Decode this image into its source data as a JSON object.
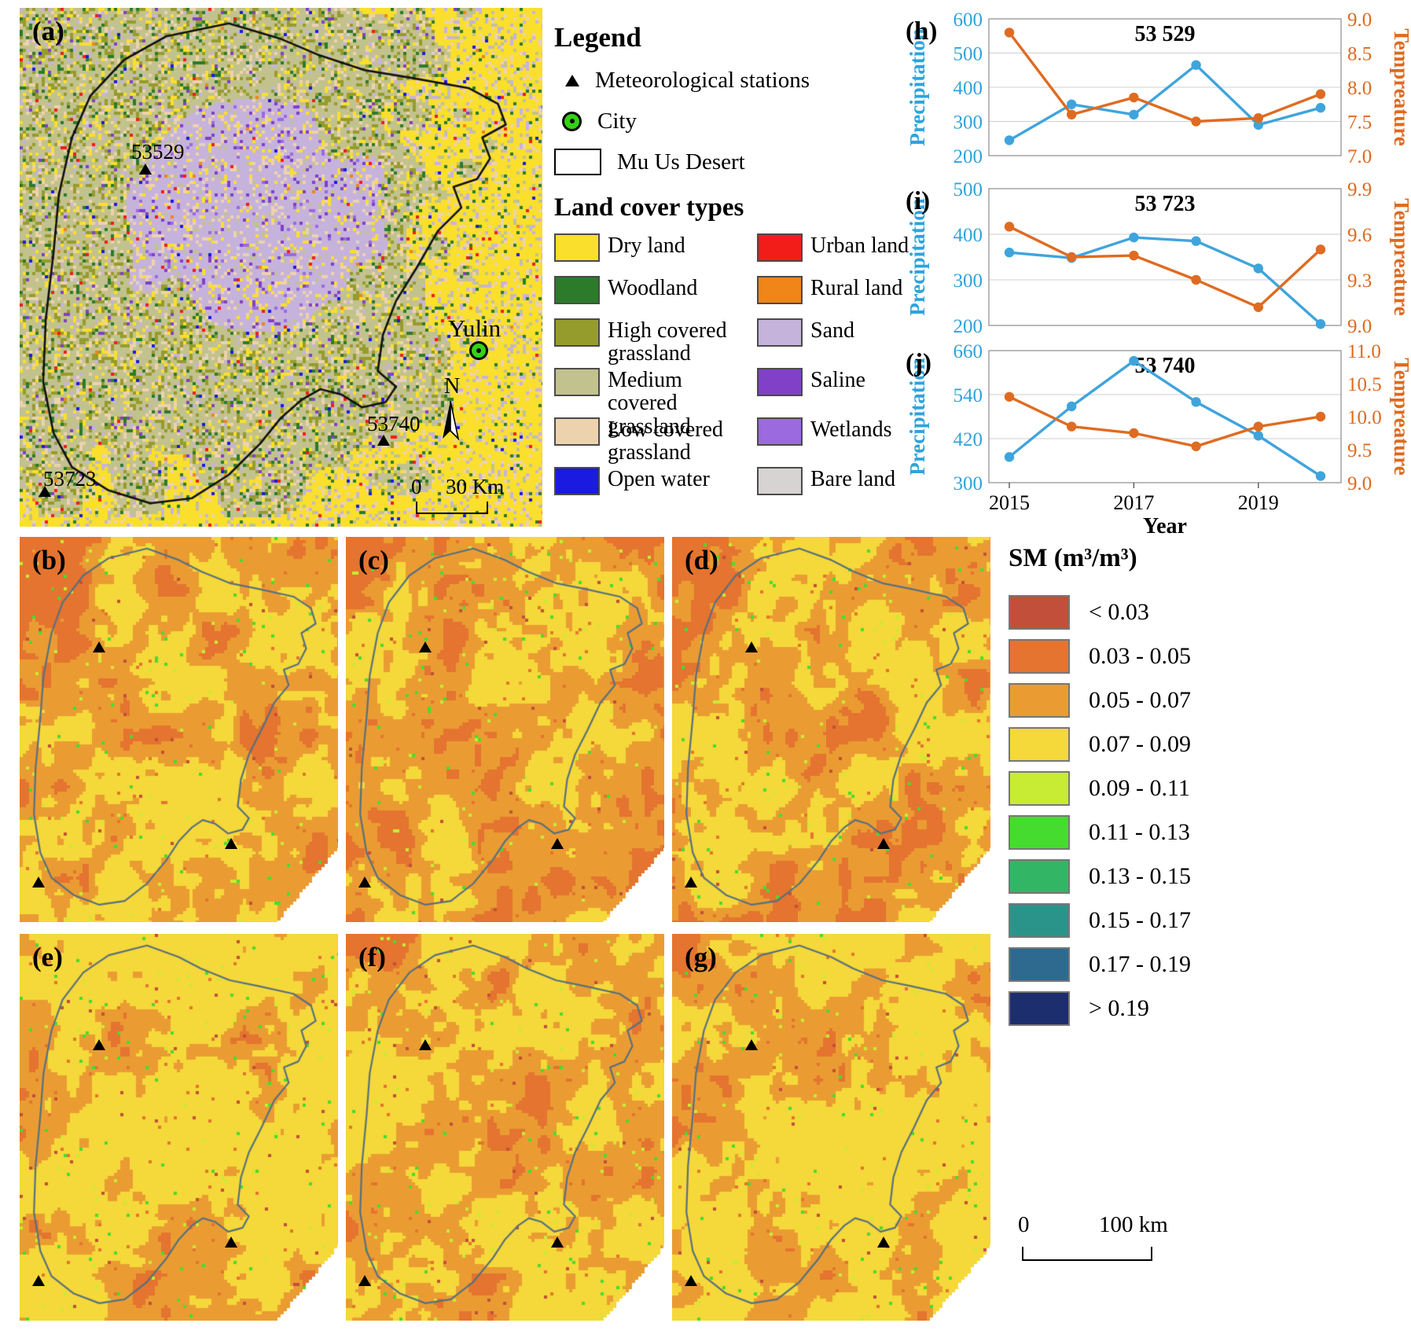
{
  "panel_a": {
    "label": "(a)",
    "stations": [
      {
        "id": "53529"
      },
      {
        "id": "53723"
      },
      {
        "id": "53740"
      }
    ],
    "city_label": "Yulin",
    "north_label": "N",
    "scalebar": {
      "start": "0",
      "end": "30 Km"
    }
  },
  "legend": {
    "title": "Legend",
    "items": [
      {
        "label": "Meteorological stations",
        "icon": "triangle-icon"
      },
      {
        "label": "City",
        "icon": "city-dot-icon"
      },
      {
        "label": "Mu Us Desert",
        "icon": "outline-box-icon"
      }
    ],
    "landcover_title": "Land cover types",
    "landcover": [
      {
        "label": "Dry land",
        "color": "#FADF2D"
      },
      {
        "label": "Woodland",
        "color": "#2B7B2B"
      },
      {
        "label": "High covered grassland",
        "color": "#969C2C"
      },
      {
        "label": "Medium covered grassland",
        "color": "#C2C28E"
      },
      {
        "label": "Low covered grassland",
        "color": "#EDD2AE"
      },
      {
        "label": "Open water",
        "color": "#1A1AE0"
      },
      {
        "label": "Urban land",
        "color": "#F21C19"
      },
      {
        "label": "Rural land",
        "color": "#F08519"
      },
      {
        "label": "Sand",
        "color": "#C6B3DC"
      },
      {
        "label": "Saline",
        "color": "#8040C8"
      },
      {
        "label": "Wetlands",
        "color": "#9A6ADE"
      },
      {
        "label": "Bare land",
        "color": "#D8D3D3"
      }
    ]
  },
  "chart_data": [
    {
      "type": "line",
      "panel_label": "(h)",
      "title": "53 529",
      "x": [
        2015,
        2016,
        2017,
        2018,
        2019,
        2020
      ],
      "x_ticks": [
        2015,
        2017,
        2019
      ],
      "xlabel": "Year",
      "left_axis": {
        "label": "Precipitation",
        "min": 200,
        "max": 600,
        "ticks": [
          200,
          300,
          400,
          500,
          600
        ]
      },
      "right_axis": {
        "label": "Tempreature",
        "min": 7.0,
        "max": 9.0,
        "ticks": [
          "7.0",
          "7.5",
          "8.0",
          "8.5",
          "9.0"
        ]
      },
      "series": [
        {
          "name": "Precipitation",
          "axis": "left",
          "color": "#3FA4DC",
          "values": [
            245,
            350,
            320,
            465,
            290,
            340
          ]
        },
        {
          "name": "Tempreature",
          "axis": "right",
          "color": "#DF6B21",
          "values": [
            8.8,
            7.6,
            7.85,
            7.5,
            7.55,
            7.9
          ]
        }
      ]
    },
    {
      "type": "line",
      "panel_label": "(i)",
      "title": "53 723",
      "x": [
        2015,
        2016,
        2017,
        2018,
        2019,
        2020
      ],
      "x_ticks": [
        2015,
        2017,
        2019
      ],
      "xlabel": "Year",
      "left_axis": {
        "label": "Precipitation",
        "min": 200,
        "max": 500,
        "ticks": [
          200,
          300,
          400,
          500
        ]
      },
      "right_axis": {
        "label": "Tempreature",
        "min": 9.0,
        "max": 9.9,
        "ticks": [
          "9.0",
          "9.3",
          "9.6",
          "9.9"
        ]
      },
      "series": [
        {
          "name": "Precipitation",
          "axis": "left",
          "color": "#3FA4DC",
          "values": [
            360,
            348,
            393,
            385,
            325,
            203
          ]
        },
        {
          "name": "Tempreature",
          "axis": "right",
          "color": "#DF6B21",
          "values": [
            9.65,
            9.45,
            9.46,
            9.3,
            9.12,
            9.5
          ]
        }
      ]
    },
    {
      "type": "line",
      "panel_label": "(j)",
      "title": "53 740",
      "x": [
        2015,
        2016,
        2017,
        2018,
        2019,
        2020
      ],
      "x_ticks": [
        2015,
        2017,
        2019
      ],
      "xlabel": "Year",
      "left_axis": {
        "label": "Precipitation",
        "min": 300,
        "max": 660,
        "ticks": [
          300,
          420,
          540,
          660
        ]
      },
      "right_axis": {
        "label": "Tempreature",
        "min": 9.0,
        "max": 11.0,
        "ticks": [
          "9.0",
          "9.5",
          "10.0",
          "10.5",
          "11.0"
        ]
      },
      "series": [
        {
          "name": "Precipitation",
          "axis": "left",
          "color": "#3FA4DC",
          "values": [
            370,
            508,
            632,
            520,
            428,
            318
          ]
        },
        {
          "name": "Tempreature",
          "axis": "right",
          "color": "#DF6B21",
          "values": [
            10.3,
            9.85,
            9.75,
            9.55,
            9.85,
            10.0
          ]
        }
      ]
    }
  ],
  "sm_maps": {
    "panel_labels": [
      "(b)",
      "(c)",
      "(d)",
      "(e)",
      "(f)",
      "(g)"
    ],
    "legend_title": "SM (m³/m³)",
    "classes": [
      {
        "label": "< 0.03",
        "color": "#C24F39"
      },
      {
        "label": "0.03 - 0.05",
        "color": "#E4742F"
      },
      {
        "label": "0.05 - 0.07",
        "color": "#EA9C33"
      },
      {
        "label": "0.07 - 0.09",
        "color": "#F5D839"
      },
      {
        "label": "0.09 - 0.11",
        "color": "#C8EC33"
      },
      {
        "label": "0.11 - 0.13",
        "color": "#46DC2F"
      },
      {
        "label": "0.13 - 0.15",
        "color": "#33B566"
      },
      {
        "label": "0.15 - 0.17",
        "color": "#2A948B"
      },
      {
        "label": "0.17 - 0.19",
        "color": "#2E6A8F"
      },
      {
        "label": "> 0.19",
        "color": "#1D2E6E"
      }
    ],
    "scalebar": {
      "start": "0",
      "end": "100 km"
    }
  }
}
